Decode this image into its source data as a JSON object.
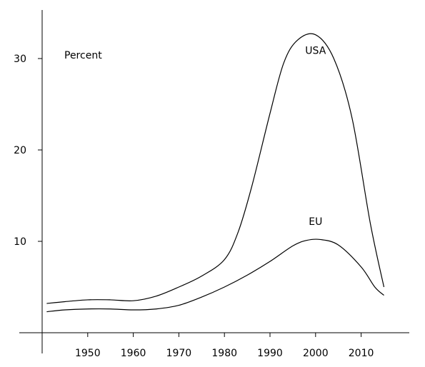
{
  "chart_data": {
    "type": "line",
    "title": "",
    "xlabel": "",
    "ylabel": "",
    "unit_label": "Percent",
    "xlim": [
      1940,
      2020
    ],
    "ylim": [
      0,
      35
    ],
    "x_ticks": [
      1950,
      1960,
      1970,
      1980,
      1990,
      2000,
      2010
    ],
    "y_ticks": [
      10,
      20,
      30
    ],
    "grid": false,
    "legend": "inline labels",
    "series": [
      {
        "name": "USA",
        "x": [
          1941,
          1945,
          1950,
          1955,
          1960,
          1965,
          1970,
          1975,
          1980,
          1983,
          1986,
          1990,
          1993,
          1996,
          2000,
          2004,
          2008,
          2012,
          2015
        ],
        "y": [
          3.2,
          3.4,
          3.6,
          3.6,
          3.5,
          4.0,
          5.0,
          6.2,
          8.0,
          11.0,
          16.0,
          24.0,
          29.5,
          32.0,
          32.6,
          30.0,
          23.5,
          12.0,
          5.0
        ]
      },
      {
        "name": "EU",
        "x": [
          1941,
          1945,
          1950,
          1955,
          1960,
          1965,
          1970,
          1975,
          1980,
          1985,
          1990,
          1995,
          1998,
          2001,
          2005,
          2010,
          2013,
          2015
        ],
        "y": [
          2.3,
          2.5,
          2.6,
          2.6,
          2.5,
          2.6,
          3.0,
          3.9,
          5.0,
          6.3,
          7.8,
          9.5,
          10.1,
          10.2,
          9.6,
          7.2,
          5.0,
          4.1
        ]
      }
    ],
    "annotations": [
      {
        "text": "USA",
        "x": 2000,
        "y": 30.5
      },
      {
        "text": "EU",
        "x": 2000,
        "y": 11.8
      }
    ]
  }
}
